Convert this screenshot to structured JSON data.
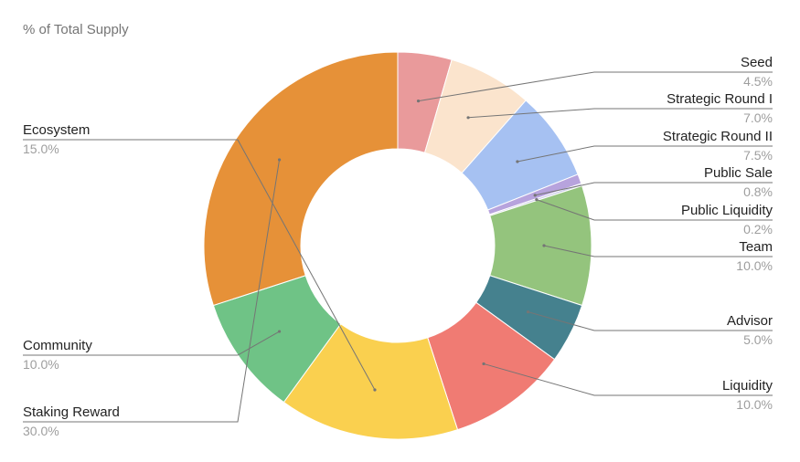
{
  "chart_data": {
    "type": "pie",
    "donut": true,
    "title": "% of Total Supply",
    "slices": [
      {
        "label": "Seed",
        "value": 4.5,
        "display": "4.5%",
        "color": "#e99a9b",
        "side": "right"
      },
      {
        "label": "Strategic Round I",
        "value": 7.0,
        "display": "7.0%",
        "color": "#fbe4cd",
        "side": "right"
      },
      {
        "label": "Strategic Round II",
        "value": 7.5,
        "display": "7.5%",
        "color": "#a6c1f2",
        "side": "right"
      },
      {
        "label": "Public Sale",
        "value": 0.8,
        "display": "0.8%",
        "color": "#b7a3dd",
        "side": "right"
      },
      {
        "label": "Public Liquidity",
        "value": 0.2,
        "display": "0.2%",
        "color": "#c9c9e8",
        "side": "right"
      },
      {
        "label": "Team",
        "value": 10.0,
        "display": "10.0%",
        "color": "#94c47d",
        "side": "right"
      },
      {
        "label": "Advisor",
        "value": 5.0,
        "display": "5.0%",
        "color": "#45818e",
        "side": "right"
      },
      {
        "label": "Liquidity",
        "value": 10.0,
        "display": "10.0%",
        "color": "#f07b73",
        "side": "right"
      },
      {
        "label": "Ecosystem",
        "value": 15.0,
        "display": "15.0%",
        "color": "#fad04f",
        "side": "left"
      },
      {
        "label": "Community",
        "value": 10.0,
        "display": "10.0%",
        "color": "#6fc386",
        "side": "left"
      },
      {
        "label": "Staking Reward",
        "value": 30.0,
        "display": "30.0%",
        "color": "#e69138",
        "side": "left"
      }
    ],
    "legend": "none",
    "labels": "outside with leader lines"
  }
}
